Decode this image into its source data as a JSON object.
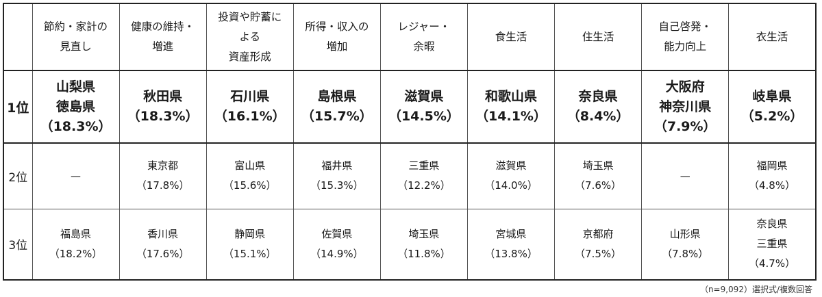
{
  "table": {
    "categories": [
      [
        "節約・家計の",
        "見直し"
      ],
      [
        "健康の維持・",
        "増進"
      ],
      [
        "投資や貯蓄に",
        "よる",
        "資産形成"
      ],
      [
        "所得・収入の",
        "増加"
      ],
      [
        "レジャー・",
        "余暇"
      ],
      [
        "食生活"
      ],
      [
        "住生活"
      ],
      [
        "自己啓発・",
        "能力向上"
      ],
      [
        "衣生活"
      ]
    ],
    "ranks": [
      "1位",
      "2位",
      "3位"
    ],
    "rows": [
      [
        [
          "山梨県",
          "徳島県",
          "（18.3%）"
        ],
        [
          "秋田県",
          "（18.3%）"
        ],
        [
          "石川県",
          "（16.1%）"
        ],
        [
          "島根県",
          "（15.7%）"
        ],
        [
          "滋賀県",
          "（14.5%）"
        ],
        [
          "和歌山県",
          "（14.1%）"
        ],
        [
          "奈良県",
          "（8.4%）"
        ],
        [
          "大阪府",
          "神奈川県",
          "（7.9%）"
        ],
        [
          "岐阜県",
          "（5.2%）"
        ]
      ],
      [
        [
          "—"
        ],
        [
          "東京都",
          "（17.8%）"
        ],
        [
          "富山県",
          "（15.6%）"
        ],
        [
          "福井県",
          "（15.3%）"
        ],
        [
          "三重県",
          "（12.2%）"
        ],
        [
          "滋賀県",
          "（14.0%）"
        ],
        [
          "埼玉県",
          "（7.6%）"
        ],
        [
          "—"
        ],
        [
          "福岡県",
          "（4.8%）"
        ]
      ],
      [
        [
          "福島県",
          "（18.2%）"
        ],
        [
          "香川県",
          "（17.6%）"
        ],
        [
          "静岡県",
          "（15.1%）"
        ],
        [
          "佐賀県",
          "（14.9%）"
        ],
        [
          "埼玉県",
          "（11.8%）"
        ],
        [
          "宮城県",
          "（13.8%）"
        ],
        [
          "京都府",
          "（7.5%）"
        ],
        [
          "山形県",
          "（7.8%）"
        ],
        [
          "奈良県",
          "三重県",
          "（4.7%）"
        ]
      ]
    ]
  },
  "footnote": "（n=9,092）選択式/複数回答"
}
